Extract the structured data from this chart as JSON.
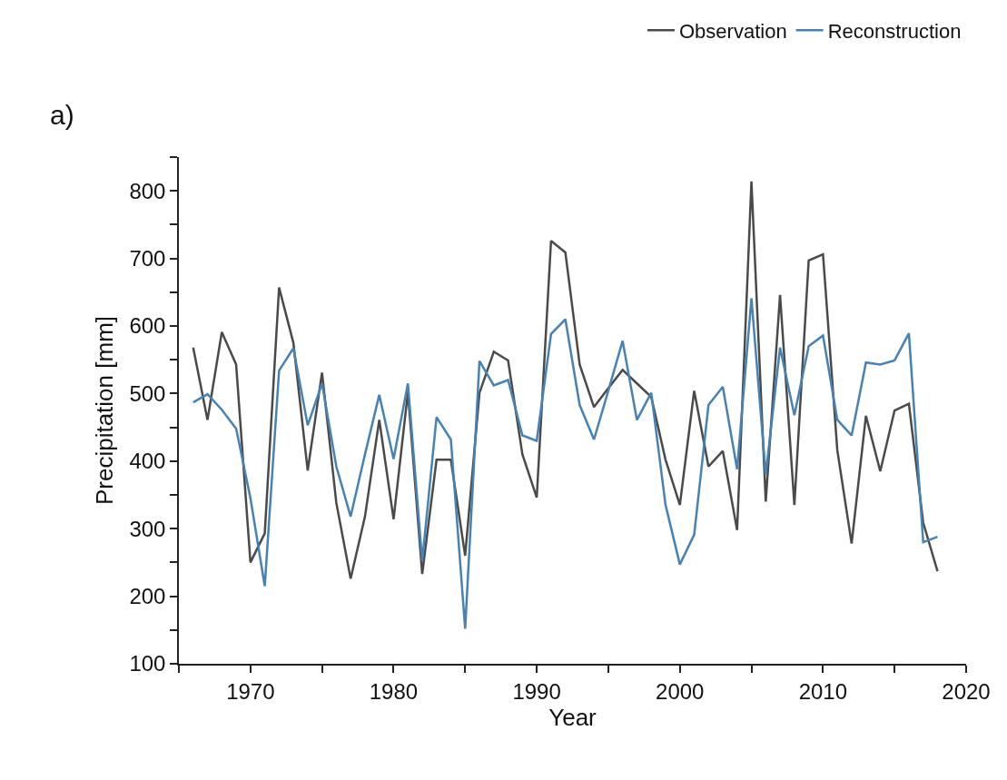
{
  "chart_data": {
    "type": "line",
    "xlabel": "Year",
    "ylabel": "Precipitation [mm]",
    "annotations": [
      "a)"
    ],
    "x": [
      1966,
      1967,
      1968,
      1969,
      1970,
      1971,
      1972,
      1973,
      1974,
      1975,
      1976,
      1977,
      1978,
      1979,
      1980,
      1981,
      1982,
      1983,
      1984,
      1985,
      1986,
      1987,
      1988,
      1989,
      1990,
      1991,
      1992,
      1993,
      1994,
      1995,
      1996,
      1997,
      1998,
      1999,
      2000,
      2001,
      2002,
      2003,
      2004,
      2005,
      2006,
      2007,
      2008,
      2009,
      2010,
      2011,
      2012,
      2013,
      2014,
      2015,
      2016,
      2017,
      2018
    ],
    "series": [
      {
        "name": "Observation",
        "color": "#4a4a4a",
        "values": [
          568,
          461,
          591,
          543,
          250,
          293,
          657,
          575,
          386,
          531,
          338,
          226,
          318,
          461,
          314,
          502,
          233,
          402,
          402,
          260,
          501,
          562,
          549,
          410,
          346,
          726,
          709,
          543,
          480,
          508,
          535,
          515,
          495,
          402,
          335,
          504,
          392,
          415,
          298,
          814,
          340,
          646,
          335,
          697,
          706,
          416,
          278,
          467,
          385,
          475,
          485,
          309,
          237
        ]
      },
      {
        "name": "Reconstruction",
        "color": "#4682b4",
        "values": [
          487,
          499,
          476,
          448,
          345,
          215,
          534,
          567,
          453,
          515,
          392,
          318,
          410,
          498,
          403,
          515,
          252,
          465,
          432,
          152,
          548,
          512,
          520,
          438,
          430,
          588,
          610,
          483,
          432,
          504,
          578,
          461,
          501,
          335,
          247,
          291,
          483,
          510,
          388,
          641,
          380,
          568,
          468,
          570,
          586,
          461,
          438,
          546,
          543,
          549,
          589,
          280,
          288
        ]
      }
    ],
    "xlim": [
      1965,
      2020
    ],
    "xticks": [
      {
        "value": 1965,
        "label": null
      },
      1970,
      {
        "value": 1975,
        "label": null
      },
      1980,
      {
        "value": 1985,
        "label": null
      },
      1990,
      {
        "value": 1995,
        "label": null
      },
      2000,
      {
        "value": 2005,
        "label": null
      },
      2010,
      {
        "value": 2015,
        "label": null
      },
      2020
    ],
    "ylim": [
      100,
      850
    ],
    "yticks": [
      100,
      {
        "value": 150,
        "label": null
      },
      200,
      {
        "value": 250,
        "label": null
      },
      300,
      {
        "value": 350,
        "label": null
      },
      400,
      {
        "value": 450,
        "label": null
      },
      500,
      {
        "value": 550,
        "label": null
      },
      600,
      {
        "value": 650,
        "label": null
      },
      700,
      {
        "value": 750,
        "label": null
      },
      800,
      {
        "value": 850,
        "label": null
      }
    ],
    "grid": false,
    "legend": "top right",
    "marker": "none",
    "line_style": "solid"
  }
}
